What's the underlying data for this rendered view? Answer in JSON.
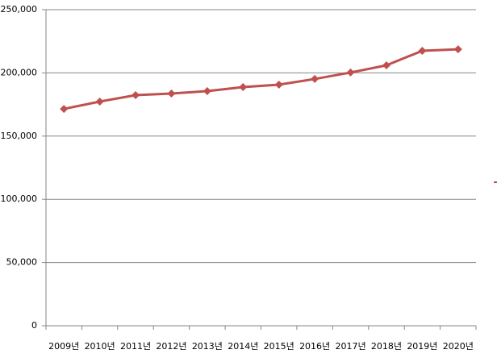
{
  "chart_data": {
    "type": "line",
    "categories": [
      "2009년",
      "2010년",
      "2011년",
      "2012년",
      "2013년",
      "2014년",
      "2015년",
      "2016년",
      "2017년",
      "2018년",
      "2019년",
      "2020년"
    ],
    "series": [
      {
        "color": "#c0504d",
        "values": [
          171500,
          177300,
          182400,
          183700,
          185600,
          188800,
          190700,
          195200,
          200300,
          206000,
          217500,
          218700
        ]
      }
    ],
    "ylim": [
      0,
      250000
    ],
    "yticks": [
      0,
      {
        "value": 50000,
        "label": "50,000"
      },
      {
        "value": 100000,
        "label": "100,000"
      },
      {
        "value": 150000,
        "label": "150,000"
      },
      {
        "value": 200000,
        "label": "200,000"
      },
      {
        "value": 250000,
        "label": "250,000"
      }
    ],
    "grid": true
  }
}
